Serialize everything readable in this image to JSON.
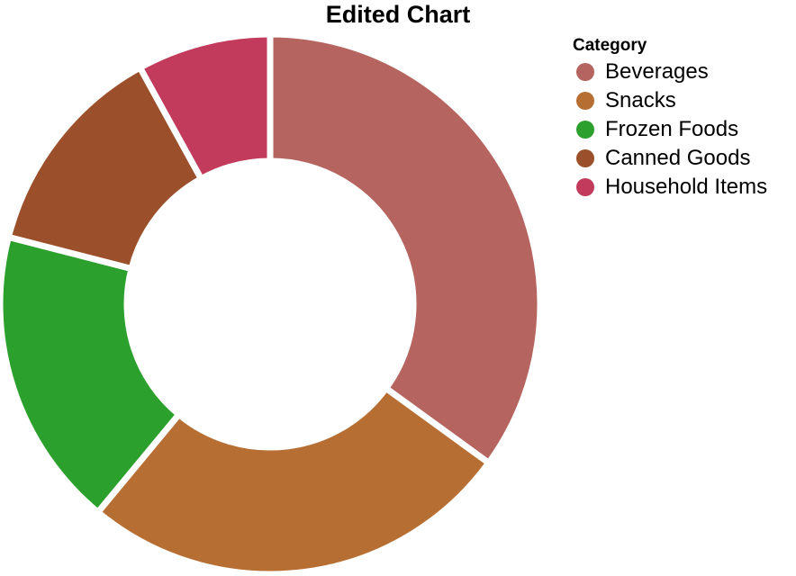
{
  "chart_data": {
    "type": "pie",
    "title": "Edited Chart",
    "legend_title": "Category",
    "legend_position": "right",
    "categories": [
      "Beverages",
      "Snacks",
      "Frozen Foods",
      "Canned Goods",
      "Household Items"
    ],
    "values": [
      35,
      26,
      18,
      13,
      8
    ],
    "colors": [
      "#b5645f",
      "#b76e32",
      "#2ca02c",
      "#9b4f2a",
      "#c23b5d"
    ],
    "hole": 0.53
  }
}
